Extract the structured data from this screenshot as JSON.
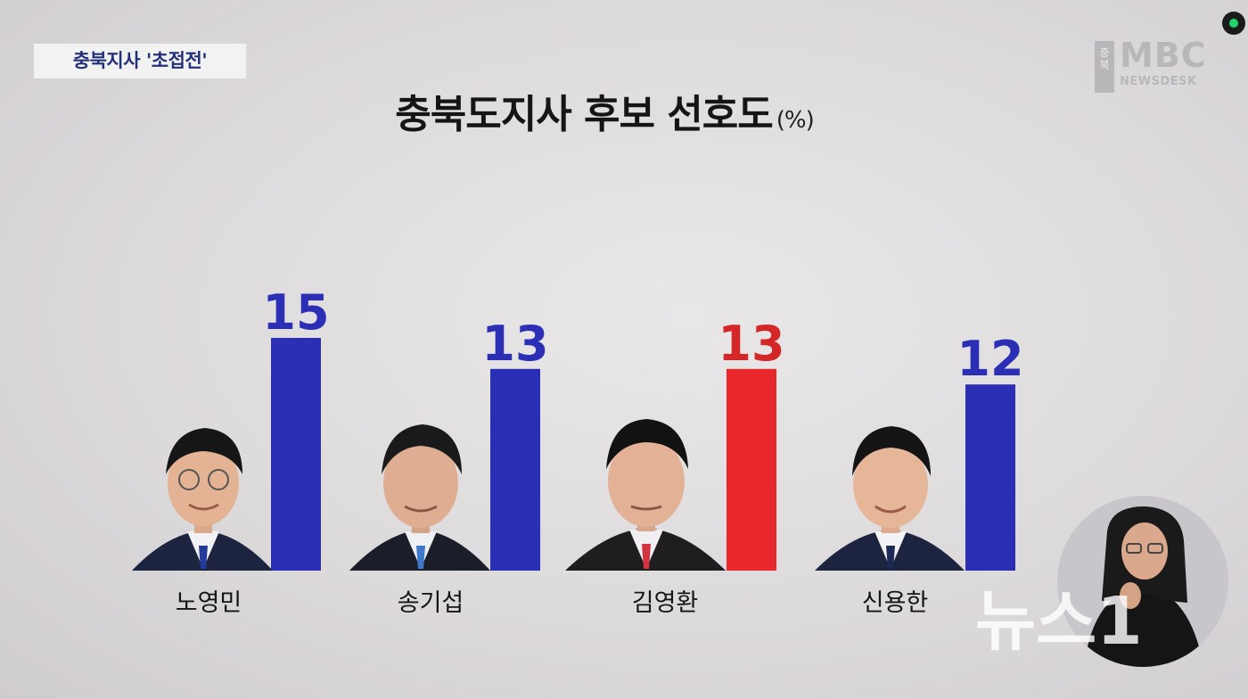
{
  "tag": "충북지사 '초접전'",
  "title": "충북도지사 후보 선호도",
  "unit": "(%)",
  "logo": {
    "side": "충북",
    "main": "MBC",
    "sub": "NEWSDESK"
  },
  "watermark": "뉴스1",
  "colors": {
    "blue": "#2a2fb5",
    "red": "#e8282a",
    "blue_text": "#2a2fb5",
    "red_text": "#d42728"
  },
  "candidates": [
    {
      "name": "노영민",
      "value_label": "15",
      "tie": "blue"
    },
    {
      "name": "송기섭",
      "value_label": "13",
      "tie": "blue"
    },
    {
      "name": "김영환",
      "value_label": "13",
      "tie": "red"
    },
    {
      "name": "신용한",
      "value_label": "12",
      "tie": "blue"
    }
  ],
  "chart_data": {
    "type": "bar",
    "title": "충북도지사 후보 선호도",
    "unit": "(%)",
    "categories": [
      "노영민",
      "송기섭",
      "김영환",
      "신용한"
    ],
    "values": [
      15,
      13,
      13,
      12
    ],
    "bar_colors": [
      "#2a2fb5",
      "#2a2fb5",
      "#e8282a",
      "#2a2fb5"
    ]
  }
}
